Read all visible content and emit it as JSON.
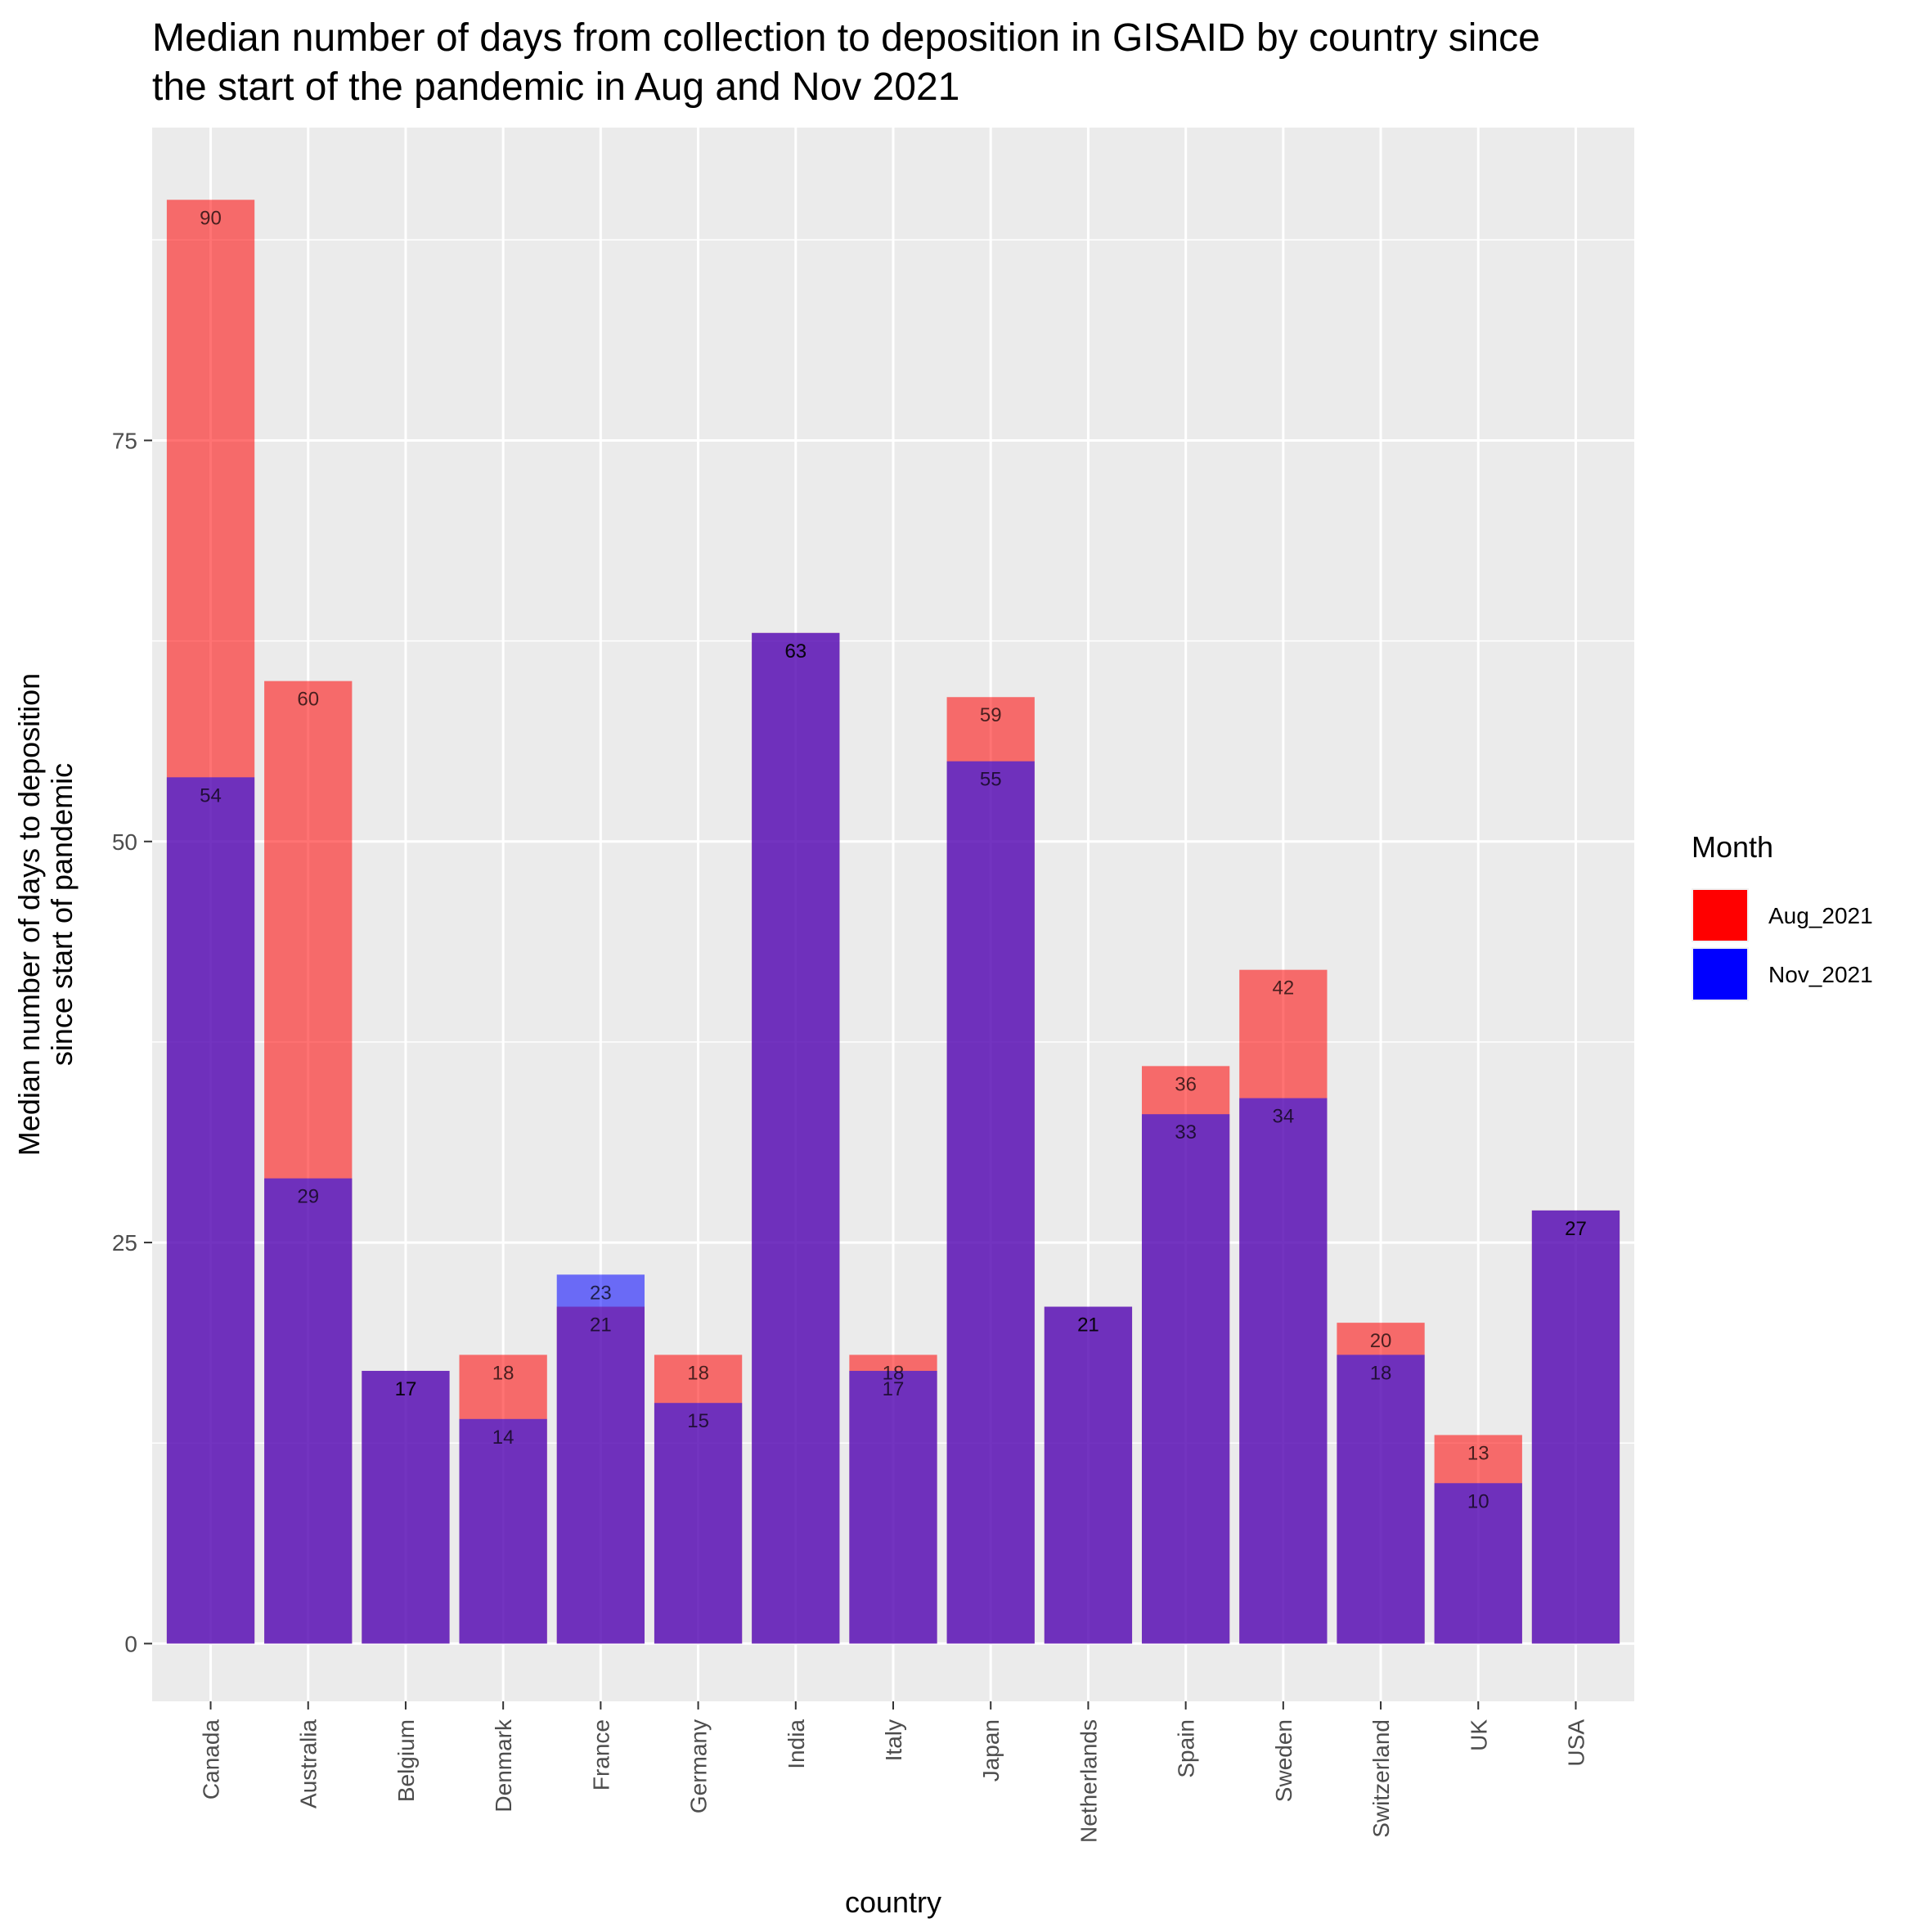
{
  "chart_data": {
    "type": "bar",
    "title": "Median number of days from collection to deposition in GISAID by country since the start of the pandemic in Aug and Nov 2021",
    "title_lines": [
      "Median number of days from collection to deposition in GISAID by country since",
      "the start of the pandemic in Aug and Nov 2021"
    ],
    "xlabel": "country",
    "ylabel": "Median number of days to deposition since start of pandemic",
    "ylabel_lines": [
      "Median number of days to deposition",
      "since start of pandemic"
    ],
    "categories": [
      "Canada",
      "Australia",
      "Belgium",
      "Denmark",
      "France",
      "Germany",
      "India",
      "Italy",
      "Japan",
      "Netherlands",
      "Spain",
      "Sweden",
      "Switzerland",
      "UK",
      "USA"
    ],
    "series": [
      {
        "name": "Aug_2021",
        "color": "#FF0000",
        "values": [
          90,
          60,
          17,
          18,
          21,
          18,
          63,
          18,
          59,
          21,
          36,
          42,
          20,
          13,
          27
        ]
      },
      {
        "name": "Nov_2021",
        "color": "#0000FF",
        "values": [
          54,
          29,
          17,
          14,
          23,
          15,
          63,
          17,
          55,
          21,
          33,
          34,
          18,
          10,
          27
        ]
      }
    ],
    "ylim": [
      -3.6,
      94.5
    ],
    "yticks": [
      0,
      25,
      50,
      75
    ],
    "grid": true,
    "bar_opacity": 0.55,
    "legend": {
      "title": "Month",
      "position": "right"
    }
  }
}
